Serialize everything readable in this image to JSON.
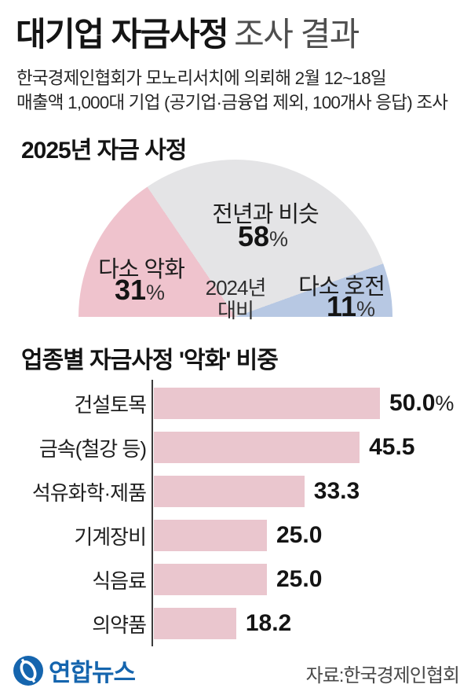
{
  "header": {
    "title_bold": "대기업 자금사정",
    "title_light": "조사 결과",
    "subtitle_line1": "한국경제인협회가 모노리서치에 의뢰해 2월 12~18일",
    "subtitle_line2": "매출액 1,000대 기업 (공기업·금융업 제외, 100개사 응답) 조사"
  },
  "footer": {
    "logo_text": "연합뉴스",
    "source": "자료:한국경제인협회"
  },
  "colors": {
    "donut_worse": "#efc3cd",
    "donut_same": "#e4e4e6",
    "donut_better": "#b7c8e3",
    "bar_fill": "#eac6ce",
    "logo_blue": "#1565ae",
    "axis": "#3c3c3c"
  },
  "chart_data": [
    {
      "type": "pie",
      "variant": "semi-donut",
      "title": "2025년 자금 사정",
      "center_line1": "2024년",
      "center_line2": "대비",
      "segments": [
        {
          "label": "다소 악화",
          "value": 31,
          "unit": "%",
          "color": "#efc3cd"
        },
        {
          "label": "전년과 비슷",
          "value": 58,
          "unit": "%",
          "color": "#e4e4e6"
        },
        {
          "label": "다소 호전",
          "value": 11,
          "unit": "%",
          "color": "#b7c8e3"
        }
      ]
    },
    {
      "type": "bar",
      "orientation": "horizontal",
      "title": "업종별 자금사정 '악화' 비중",
      "categories": [
        "건설토목",
        "금속(철강 등)",
        "석유화학·제품",
        "기계장비",
        "식음료",
        "의약품"
      ],
      "values": [
        50.0,
        45.5,
        33.3,
        25.0,
        25.0,
        18.2
      ],
      "value_labels": [
        "50.0%",
        "45.5",
        "33.3",
        "25.0",
        "25.0",
        "18.2"
      ],
      "unit": "%",
      "xlim": [
        0,
        50
      ],
      "bar_color": "#eac6ce",
      "grid": false,
      "legend": false
    }
  ]
}
